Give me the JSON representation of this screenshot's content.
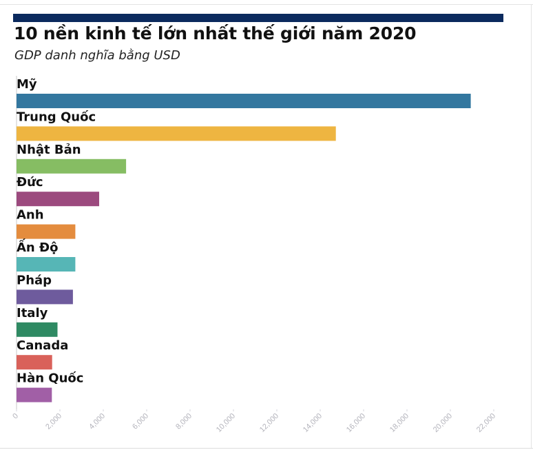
{
  "header": {
    "title": "10 nền kinh tế lớn nhất thế giới năm 2020",
    "subtitle": "GDP danh nghĩa bằng USD"
  },
  "colors": {
    "accent": "#0b2a5e"
  },
  "chart_data": {
    "type": "bar",
    "orientation": "horizontal",
    "title": "10 nền kinh tế lớn nhất thế giới năm 2020",
    "subtitle": "GDP danh nghĩa bằng USD",
    "xlabel": "",
    "ylabel": "",
    "categories": [
      "Mỹ",
      "Trung Quốc",
      "Nhật Bản",
      "Đức",
      "Anh",
      "Ấn Độ",
      "Pháp",
      "Italy",
      "Canada",
      "Hàn Quốc"
    ],
    "values": [
      20940,
      14720,
      5050,
      3810,
      2710,
      2710,
      2600,
      1890,
      1640,
      1630
    ],
    "colors": [
      "#33779f",
      "#eeb541",
      "#86bd63",
      "#9c4a7e",
      "#e48c3e",
      "#56b6b6",
      "#6e5b9d",
      "#2f8a63",
      "#d9615a",
      "#a15fa6"
    ],
    "xlim": [
      0,
      22000
    ],
    "xticks": [
      "0",
      "2,000",
      "4,000",
      "6,000",
      "8,000",
      "10,000",
      "12,000",
      "14,000",
      "16,000",
      "18,000",
      "20,000",
      "22,000"
    ],
    "grid": false,
    "legend": "none"
  }
}
